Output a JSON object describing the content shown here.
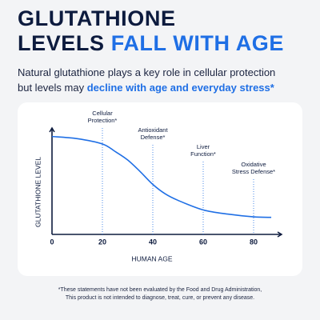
{
  "header": {
    "title_line1": "GLUTATHIONE",
    "title_line2": "LEVELS",
    "title_highlight": "FALL WITH AGE",
    "subtitle_line1": "Natural glutathione plays a key role in cellular protection",
    "subtitle_line2": "but levels may",
    "subtitle_highlight": "decline with age and everyday stress*"
  },
  "chart_data": {
    "type": "line",
    "x_label": "HUMAN AGE",
    "y_label": "GLUTATHIONE LEVEL",
    "x": [
      0,
      10,
      20,
      25,
      30,
      35,
      40,
      45,
      50,
      60,
      70,
      80,
      87
    ],
    "series": [
      {
        "name": "Glutathione level",
        "color": "#1f6fe5",
        "values": [
          92,
          90,
          85,
          78,
          70,
          59,
          47,
          38,
          32,
          23,
          19,
          16.5,
          16
        ]
      }
    ],
    "xlim": [
      0,
      90
    ],
    "ylim": [
      0,
      100
    ],
    "xticks": [
      0,
      20,
      40,
      60,
      80
    ],
    "grid": false,
    "annotations": [
      {
        "x": 20,
        "lines": [
          "Cellular",
          "Protection*"
        ]
      },
      {
        "x": 40,
        "lines": [
          "Antioxidant",
          "Defense*"
        ]
      },
      {
        "x": 60,
        "lines": [
          "Liver",
          "Function*"
        ]
      },
      {
        "x": 80,
        "lines": [
          "Oxidative",
          "Stress Defense*"
        ]
      }
    ]
  },
  "footnote": {
    "line1": "*These statements have not been evaluated by the Food and Drug Administration,",
    "line2": "This product is not intended to diagnose, treat, cure, or prevent any disease."
  }
}
